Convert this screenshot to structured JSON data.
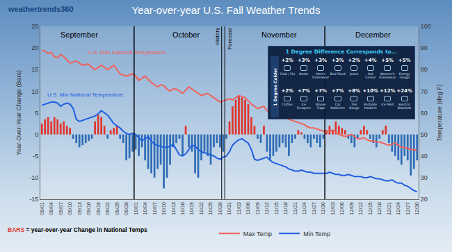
{
  "chart_data": {
    "type": "bar",
    "title": "Year-over-year U.S. Fall Weather Trends",
    "logo": "weathertrends360",
    "ylabel": "Year-Over-Year Change (Bars)",
    "y2label": "Temperature (deg F)",
    "categories": [
      "09/01",
      null,
      null,
      "09/04",
      null,
      null,
      "09/07",
      null,
      null,
      "09/10",
      null,
      null,
      "09/13",
      null,
      null,
      "09/16",
      null,
      null,
      "09/19",
      null,
      null,
      "09/22",
      null,
      null,
      "09/25",
      null,
      null,
      "09/28",
      null,
      null,
      "10/01",
      null,
      null,
      "10/04",
      null,
      null,
      "10/07",
      null,
      null,
      "10/10",
      null,
      null,
      "10/13",
      null,
      null,
      "10/16",
      null,
      null,
      "10/19",
      null,
      null,
      "10/22",
      null,
      null,
      "10/25",
      null,
      null,
      "10/28",
      null,
      null,
      "10/31",
      null,
      null,
      "11/03",
      null,
      null,
      "11/06",
      null,
      null,
      "11/09",
      null,
      null,
      "11/12",
      null,
      null,
      "11/15",
      null,
      null,
      "11/18",
      null,
      null,
      "11/21",
      null,
      null,
      "11/24",
      null,
      null,
      "11/27",
      null,
      null,
      "11/30",
      null,
      null,
      "12/03",
      null,
      null,
      "12/06",
      null,
      null,
      "12/09",
      null,
      null,
      "12/12",
      null,
      null,
      "12/15",
      null,
      null,
      "12/18",
      null,
      null,
      "12/21",
      null,
      null,
      "12/24",
      null,
      null,
      "12/27",
      null,
      null,
      "12/30"
    ],
    "values": [
      2.5,
      3.5,
      4,
      3,
      4,
      3.5,
      2.5,
      3,
      2,
      1.5,
      -1,
      -2,
      -3,
      -2.5,
      -2,
      -1.5,
      -1,
      3,
      4.5,
      4,
      2,
      -1,
      1,
      1.5,
      2,
      -1,
      -2,
      -6,
      -5.5,
      -4,
      -3.5,
      -5,
      -3,
      -6,
      -8,
      -9,
      -10,
      -8,
      -7,
      -12.5,
      -10,
      -7,
      -3,
      -2,
      -1,
      -5,
      2,
      -3,
      -4,
      -9,
      -10,
      -6,
      -4,
      -5,
      -7,
      -3,
      -2,
      -3,
      -4,
      -1,
      3,
      6.5,
      8,
      9,
      8.5,
      8,
      7,
      4,
      2,
      -1,
      -2,
      2,
      -4,
      -6,
      -5,
      -4,
      -3,
      -2,
      -3,
      -5,
      -2,
      -1,
      1,
      0.5,
      -1,
      -2,
      -3,
      -1,
      -2,
      -3,
      -1,
      1,
      2,
      1,
      3,
      2,
      1.5,
      1,
      -1,
      -2,
      -3,
      -1,
      1,
      2,
      1,
      -1,
      -2,
      -3,
      -1,
      1,
      2,
      -2,
      -4,
      -5,
      -6,
      -7,
      -5,
      -6,
      -9.5,
      -8,
      -6
    ],
    "colors": [
      "#e0352b",
      "#e0352b",
      "#e0352b",
      "#e0352b",
      "#e0352b",
      "#e0352b",
      "#e0352b",
      "#e0352b",
      "#e0352b",
      "#e0352b",
      "#2f6cb5",
      "#2f6cb5",
      "#2f6cb5",
      "#2f6cb5",
      "#2f6cb5",
      "#2f6cb5",
      "#2f6cb5",
      "#e0352b",
      "#e0352b",
      "#e0352b",
      "#e0352b",
      "#2f6cb5",
      "#e0352b",
      "#e0352b",
      "#e0352b",
      "#2f6cb5",
      "#2f6cb5",
      "#2f6cb5",
      "#2f6cb5",
      "#2f6cb5",
      "#2f6cb5",
      "#2f6cb5",
      "#2f6cb5",
      "#2f6cb5",
      "#2f6cb5",
      "#2f6cb5",
      "#2f6cb5",
      "#2f6cb5",
      "#2f6cb5",
      "#2f6cb5",
      "#2f6cb5",
      "#2f6cb5",
      "#2f6cb5",
      "#2f6cb5",
      "#2f6cb5",
      "#2f6cb5",
      "#e0352b",
      "#2f6cb5",
      "#2f6cb5",
      "#2f6cb5",
      "#2f6cb5",
      "#2f6cb5",
      "#2f6cb5",
      "#2f6cb5",
      "#2f6cb5",
      "#2f6cb5",
      "#2f6cb5",
      "#2f6cb5",
      "#2f6cb5",
      "#2f6cb5",
      "#e0352b",
      "#e0352b",
      "#e0352b",
      "#e0352b",
      "#e0352b",
      "#e0352b",
      "#e0352b",
      "#e0352b",
      "#e0352b",
      "#2f6cb5",
      "#2f6cb5",
      "#e0352b",
      "#2f6cb5",
      "#2f6cb5",
      "#2f6cb5",
      "#2f6cb5",
      "#2f6cb5",
      "#2f6cb5",
      "#2f6cb5",
      "#2f6cb5",
      "#2f6cb5",
      "#2f6cb5",
      "#e0352b",
      "#e0352b",
      "#2f6cb5",
      "#2f6cb5",
      "#2f6cb5",
      "#2f6cb5",
      "#2f6cb5",
      "#2f6cb5",
      "#2f6cb5",
      "#e0352b",
      "#e0352b",
      "#e0352b",
      "#e0352b",
      "#e0352b",
      "#e0352b",
      "#e0352b",
      "#2f6cb5",
      "#2f6cb5",
      "#2f6cb5",
      "#2f6cb5",
      "#e0352b",
      "#e0352b",
      "#e0352b",
      "#2f6cb5",
      "#2f6cb5",
      "#2f6cb5",
      "#2f6cb5",
      "#e0352b",
      "#e0352b",
      "#2f6cb5",
      "#2f6cb5",
      "#2f6cb5",
      "#2f6cb5",
      "#2f6cb5",
      "#2f6cb5",
      "#2f6cb5",
      "#2f6cb5",
      "#2f6cb5",
      "#2f6cb5"
    ],
    "series": [
      {
        "name": "Max Temp",
        "type": "line",
        "axis": "y2",
        "color": "#f0625a",
        "values": [
          89,
          88.5,
          87.5,
          88,
          86,
          85.5,
          87,
          86,
          84.5,
          83,
          83.5,
          84,
          83,
          82,
          82.5,
          82.5,
          81,
          80,
          81,
          82,
          81,
          80,
          81,
          82,
          80,
          78,
          77.5,
          77,
          77.5,
          78,
          77,
          75,
          76,
          77,
          75.5,
          74,
          73,
          72,
          73,
          72.5,
          71,
          70,
          71,
          71,
          70,
          69,
          70.5,
          72,
          71,
          70,
          69,
          68,
          68.5,
          69,
          68,
          67,
          66,
          65,
          65.5,
          66,
          66.5,
          66,
          67,
          68,
          67.5,
          67,
          65.5,
          64,
          63,
          62,
          62.5,
          63,
          61,
          60,
          60,
          59,
          58.5,
          58,
          57.5,
          57,
          56.5,
          56,
          55.5,
          55,
          54.5,
          53.5,
          53,
          53,
          52.5,
          52,
          51.5,
          51,
          51.5,
          52,
          51,
          50,
          49.5,
          49,
          49.5,
          50,
          49,
          48,
          48,
          48.5,
          47.5,
          47,
          47,
          46.5,
          46.5,
          46,
          45.5,
          45,
          45.5,
          46,
          45,
          44,
          44,
          43.5,
          43,
          43,
          42.5
        ]
      },
      {
        "name": "Min Temp",
        "type": "line",
        "axis": "y2",
        "color": "#1f5fe0",
        "values": [
          63.5,
          64,
          64.5,
          65,
          65,
          64.5,
          63,
          64,
          64.5,
          64,
          62,
          57,
          56,
          56.5,
          57,
          57.5,
          58,
          58.5,
          59.5,
          61,
          60,
          59,
          57,
          55,
          54,
          53,
          51.5,
          50.5,
          50,
          50.5,
          50,
          48.5,
          47,
          48,
          49,
          47,
          45.5,
          45,
          44.5,
          44,
          44,
          44.5,
          45.5,
          43,
          40.5,
          40,
          41,
          43,
          45,
          44.5,
          43,
          42,
          41.5,
          41,
          40.5,
          40,
          39,
          38.5,
          39.5,
          40,
          42,
          45,
          46.5,
          47.5,
          48,
          47,
          46,
          43,
          38.5,
          38,
          38.5,
          39,
          39.5,
          38,
          37,
          36.5,
          36,
          35.5,
          35,
          34,
          33.5,
          33,
          33,
          33.5,
          33,
          32.5,
          32.5,
          32,
          32,
          32,
          32,
          32,
          32.5,
          32,
          31.5,
          31.5,
          31,
          31,
          31.5,
          31,
          30.5,
          30.5,
          30.5,
          30,
          30,
          30.5,
          30,
          29.5,
          29.5,
          29,
          28.5,
          28.5,
          29,
          28,
          27.5,
          27.5,
          26.5,
          26,
          25,
          24,
          23.5
        ]
      }
    ],
    "ylim": [
      -15,
      25
    ],
    "yticks": [
      -15,
      -10,
      -5,
      0,
      5,
      10,
      15,
      20,
      25
    ],
    "y2lim": [
      20,
      100
    ],
    "y2ticks": [
      20,
      30,
      40,
      50,
      60,
      70,
      80,
      90,
      100
    ],
    "grid": false,
    "legend": "bottom",
    "month_labels": [
      {
        "text": "September",
        "x": 12
      },
      {
        "text": "October",
        "x": 46
      },
      {
        "text": "November",
        "x": 76
      },
      {
        "text": "December",
        "x": 106
      }
    ],
    "month_dividers": [
      29.5,
      90.5
    ],
    "markers": [
      {
        "text": "History",
        "x": 57.5
      },
      {
        "text": "Forecast",
        "x": 58.5
      }
    ],
    "annotations": [
      {
        "text": "U.S. Max National Temperature",
        "x": 27,
        "y": 88,
        "axis": "y2",
        "color": "#f0625a"
      },
      {
        "text": "U.S. Min National Temperature",
        "x": 14,
        "y": 68.5,
        "axis": "y2",
        "color": "#1f5fe0"
      }
    ],
    "footnote": {
      "label": "BARS",
      "text": "= year-over-year Change in National Temps"
    },
    "inset": {
      "title": "1 Degree Difference Corresponds to...",
      "row_label": "1 Degree Colder",
      "rows": [
        [
          {
            "name": "Cold / Flu",
            "change": "+2%"
          },
          {
            "name": "Boots",
            "change": "+3%"
          },
          {
            "name": "Men's Outerwear",
            "change": "+3%"
          },
          {
            "name": "Bird Seed",
            "change": "+3%"
          },
          {
            "name": "Jeans",
            "change": "+2%"
          },
          {
            "name": "Hot Cereal",
            "change": "+4%"
          },
          {
            "name": "Women's Outerwear",
            "change": "+5%"
          },
          {
            "name": "Energy Usage",
            "change": "+5%"
          }
        ],
        [
          {
            "name": "Coffee",
            "change": "+2%"
          },
          {
            "name": "Ice Scrapers",
            "change": "+7%"
          },
          {
            "name": "Mouse Traps",
            "change": "+7%"
          },
          {
            "name": "Car Batteries",
            "change": "+7%"
          },
          {
            "name": "Tire Gauge",
            "change": "+8%"
          },
          {
            "name": "Portable Heaters",
            "change": "+10%"
          },
          {
            "name": "Ice Melt",
            "change": "+12%"
          },
          {
            "name": "Electric Blankets",
            "change": "+24%"
          }
        ]
      ]
    }
  }
}
